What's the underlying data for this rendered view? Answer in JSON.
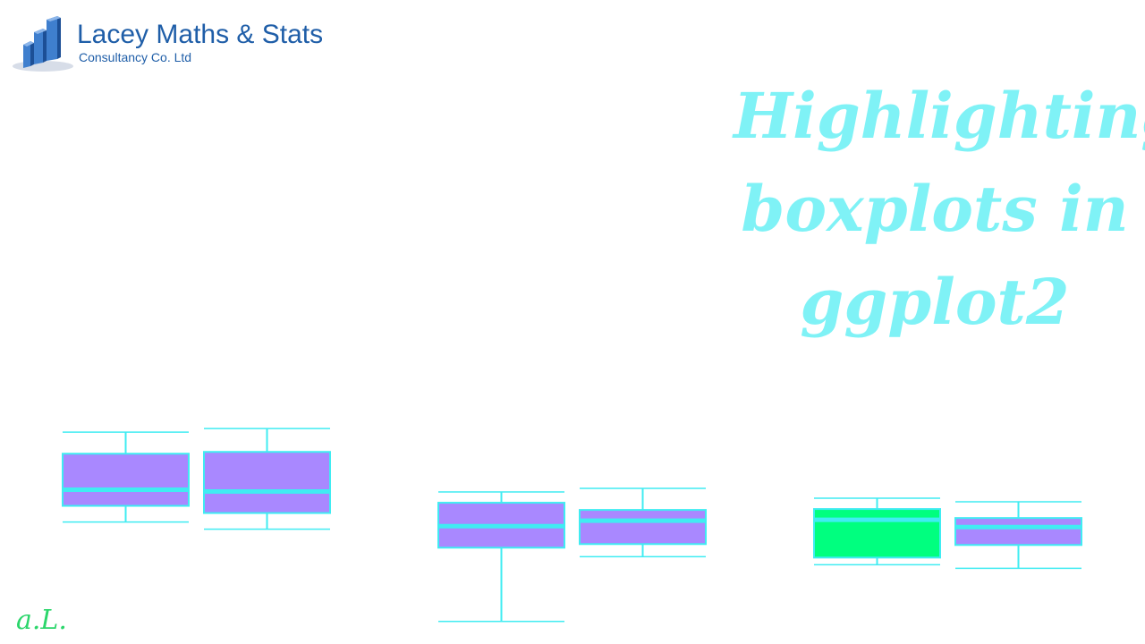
{
  "logo": {
    "title": "Lacey Maths & Stats",
    "subtitle": "Consultancy Co. Ltd",
    "icon": "bar-chart-logo-icon",
    "brand_color": "#1f5ea8"
  },
  "headline": {
    "lines": [
      "Highlighting",
      "boxplots in",
      "ggplot2"
    ],
    "color": "#7ff2f6"
  },
  "signature": "a.L.",
  "colors": {
    "box_fill": "#a988ff",
    "highlight_fill": "#00ff7f",
    "line": "#40ecf2"
  },
  "chart_data": [
    {
      "type": "boxplot",
      "series": [
        {
          "min": 37,
          "q1": 46,
          "median": 55,
          "q3": 75,
          "max": 87,
          "highlighted": false
        },
        {
          "min": 33,
          "q1": 42,
          "median": 54,
          "q3": 76,
          "max": 89,
          "highlighted": false
        }
      ]
    },
    {
      "type": "boxplot",
      "series": [
        {
          "min": 28,
          "q1": 69,
          "median": 81,
          "q3": 94,
          "max": 100,
          "highlighted": false
        },
        {
          "min": 64,
          "q1": 71,
          "median": 84,
          "q3": 90,
          "max": 102,
          "highlighted": false
        }
      ]
    },
    {
      "type": "boxplot",
      "series": [
        {
          "min": 59,
          "q1": 63,
          "median": 84,
          "q3": 90,
          "max": 96,
          "highlighted": true
        },
        {
          "min": 57,
          "q1": 70,
          "median": 80,
          "q3": 85,
          "max": 94,
          "highlighted": false
        }
      ]
    }
  ]
}
